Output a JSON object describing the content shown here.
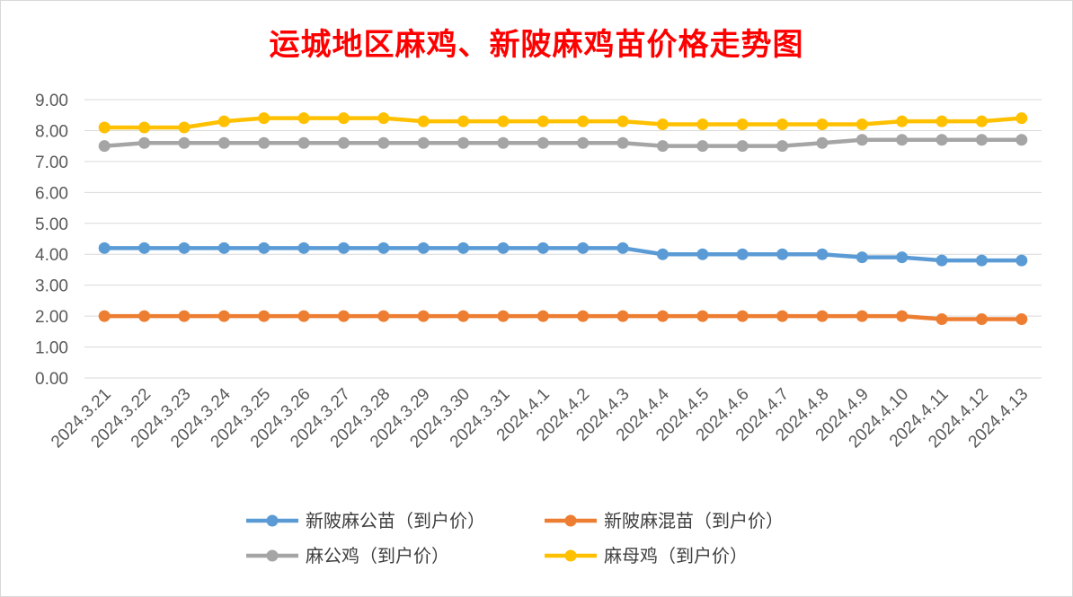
{
  "chart_data": {
    "type": "line",
    "title": "运城地区麻鸡、新陂麻鸡苗价格走势图",
    "categories": [
      "2024.3.21",
      "2024.3.22",
      "2024.3.23",
      "2024.3.24",
      "2024.3.25",
      "2024.3.26",
      "2024.3.27",
      "2024.3.28",
      "2024.3.29",
      "2024.3.30",
      "2024.3.31",
      "2024.4.1",
      "2024.4.2",
      "2024.4.3",
      "2024.4.4",
      "2024.4.5",
      "2024.4.6",
      "2024.4.7",
      "2024.4.8",
      "2024.4.9",
      "2024.4.10",
      "2024.4.11",
      "2024.4.12",
      "2024.4.13"
    ],
    "y_ticks": [
      "0.00",
      "1.00",
      "2.00",
      "3.00",
      "4.00",
      "5.00",
      "6.00",
      "7.00",
      "8.00",
      "9.00"
    ],
    "ylim": [
      0,
      9
    ],
    "grid": true,
    "legend_position": "bottom",
    "series": [
      {
        "name": "新陂麻公苗（到户价）",
        "color": "#5b9bd5",
        "values": [
          4.2,
          4.2,
          4.2,
          4.2,
          4.2,
          4.2,
          4.2,
          4.2,
          4.2,
          4.2,
          4.2,
          4.2,
          4.2,
          4.2,
          4.0,
          4.0,
          4.0,
          4.0,
          4.0,
          3.9,
          3.9,
          3.8,
          3.8,
          3.8
        ]
      },
      {
        "name": "新陂麻混苗（到户价）",
        "color": "#ed7d31",
        "values": [
          2.0,
          2.0,
          2.0,
          2.0,
          2.0,
          2.0,
          2.0,
          2.0,
          2.0,
          2.0,
          2.0,
          2.0,
          2.0,
          2.0,
          2.0,
          2.0,
          2.0,
          2.0,
          2.0,
          2.0,
          2.0,
          1.9,
          1.9,
          1.9
        ]
      },
      {
        "name": "麻公鸡（到户价）",
        "color": "#a5a5a5",
        "values": [
          7.5,
          7.6,
          7.6,
          7.6,
          7.6,
          7.6,
          7.6,
          7.6,
          7.6,
          7.6,
          7.6,
          7.6,
          7.6,
          7.6,
          7.5,
          7.5,
          7.5,
          7.5,
          7.6,
          7.7,
          7.7,
          7.7,
          7.7,
          7.7
        ]
      },
      {
        "name": "麻母鸡（到户价）",
        "color": "#ffc000",
        "values": [
          8.1,
          8.1,
          8.1,
          8.3,
          8.4,
          8.4,
          8.4,
          8.4,
          8.3,
          8.3,
          8.3,
          8.3,
          8.3,
          8.3,
          8.2,
          8.2,
          8.2,
          8.2,
          8.2,
          8.2,
          8.3,
          8.3,
          8.3,
          8.4
        ]
      }
    ]
  }
}
